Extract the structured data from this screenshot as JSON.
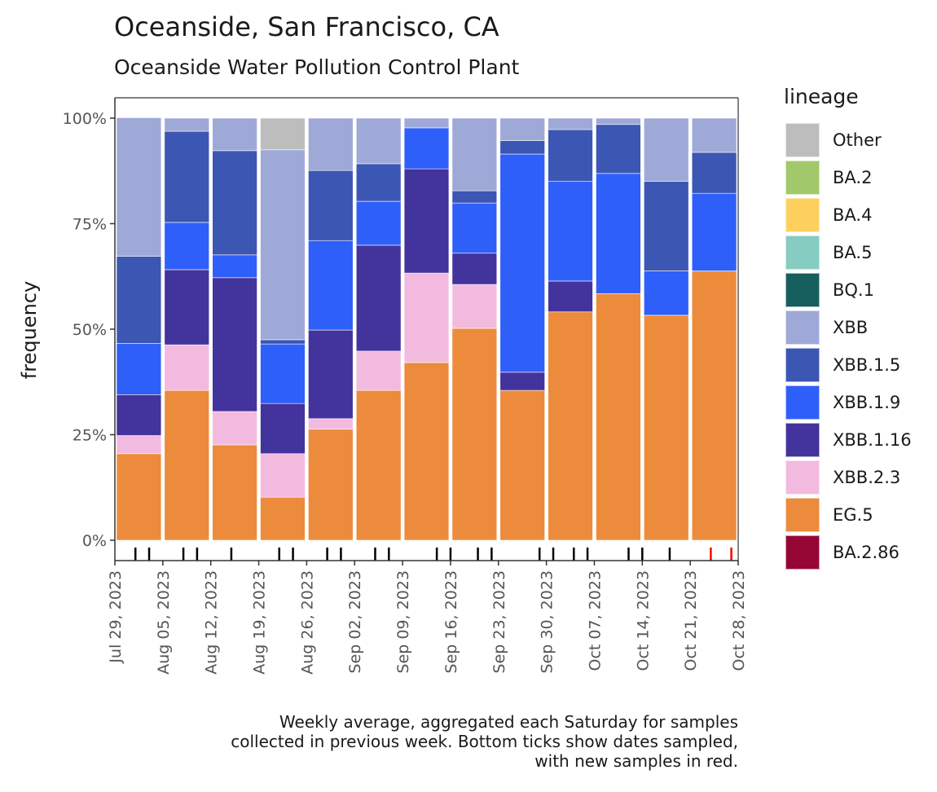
{
  "chart_data": {
    "type": "bar",
    "stacked": true,
    "title": "Oceanside, San Francisco, CA",
    "subtitle": "Oceanside Water Pollution Control Plant",
    "xlabel": "",
    "ylabel": "frequency",
    "ylim": [
      0,
      1
    ],
    "y_ticks": [
      {
        "value": 0,
        "label": "0%"
      },
      {
        "value": 0.25,
        "label": "25%"
      },
      {
        "value": 0.5,
        "label": "50%"
      },
      {
        "value": 0.75,
        "label": "75%"
      },
      {
        "value": 1,
        "label": "100%"
      }
    ],
    "x_range_days": [
      0,
      91
    ],
    "x_ticks": [
      {
        "day": 0,
        "label": "Jul 29, 2023"
      },
      {
        "day": 7,
        "label": "Aug 05, 2023"
      },
      {
        "day": 14,
        "label": "Aug 12, 2023"
      },
      {
        "day": 21,
        "label": "Aug 19, 2023"
      },
      {
        "day": 28,
        "label": "Aug 26, 2023"
      },
      {
        "day": 35,
        "label": "Sep 02, 2023"
      },
      {
        "day": 42,
        "label": "Sep 09, 2023"
      },
      {
        "day": 49,
        "label": "Sep 16, 2023"
      },
      {
        "day": 56,
        "label": "Sep 23, 2023"
      },
      {
        "day": 63,
        "label": "Sep 30, 2023"
      },
      {
        "day": 70,
        "label": "Oct 07, 2023"
      },
      {
        "day": 77,
        "label": "Oct 14, 2023"
      },
      {
        "day": 84,
        "label": "Oct 21, 2023"
      },
      {
        "day": 91,
        "label": "Oct 28, 2023"
      }
    ],
    "categories": [
      "Aug 05, 2023",
      "Aug 12, 2023",
      "Aug 19, 2023",
      "Aug 26, 2023",
      "Sep 02, 2023",
      "Sep 09, 2023",
      "Sep 16, 2023",
      "Sep 23, 2023",
      "Sep 30, 2023",
      "Oct 07, 2023",
      "Oct 14, 2023",
      "Oct 21, 2023",
      "Oct 28, 2023"
    ],
    "stack_order": [
      "EG.5",
      "XBB.2.3",
      "XBB.1.16",
      "XBB.1.9",
      "XBB.1.5",
      "XBB",
      "Other"
    ],
    "series": [
      {
        "name": "Other",
        "color": "#bdbdbd",
        "values": [
          0,
          0,
          0,
          7.5,
          0,
          0,
          0,
          0,
          0,
          0,
          0,
          0,
          0
        ]
      },
      {
        "name": "BA.2",
        "color": "#a1c96b",
        "values": [
          0,
          0,
          0,
          0,
          0,
          0,
          0,
          0,
          0,
          0,
          0,
          0,
          0
        ]
      },
      {
        "name": "BA.4",
        "color": "#fdd05e",
        "values": [
          0,
          0,
          0,
          0,
          0,
          0,
          0,
          0,
          0,
          0,
          0,
          0,
          0
        ]
      },
      {
        "name": "BA.5",
        "color": "#86ccc1",
        "values": [
          0,
          0,
          0,
          0,
          0,
          0,
          0,
          0,
          0,
          0,
          0,
          0,
          0
        ]
      },
      {
        "name": "BQ.1",
        "color": "#175e5e",
        "values": [
          0,
          0,
          0,
          0,
          0,
          0,
          0,
          0,
          0,
          0,
          0,
          0,
          0
        ]
      },
      {
        "name": "XBB",
        "color": "#9fa9d8",
        "values": [
          32.8,
          3.1,
          7.7,
          45.0,
          12.4,
          10.8,
          2.3,
          17.2,
          5.3,
          2.7,
          1.5,
          15.0,
          8.1
        ]
      },
      {
        "name": "XBB.1.5",
        "color": "#3c56b3",
        "values": [
          20.7,
          21.6,
          24.7,
          1.0,
          16.6,
          8.9,
          0,
          2.9,
          3.2,
          12.3,
          11.6,
          21.2,
          9.7
        ]
      },
      {
        "name": "XBB.1.9",
        "color": "#2f5ff9",
        "values": [
          12.1,
          11.2,
          5.4,
          14.1,
          21.2,
          10.4,
          9.7,
          11.9,
          51.7,
          23.6,
          28.5,
          10.5,
          18.4
        ]
      },
      {
        "name": "XBB.1.16",
        "color": "#43339c",
        "values": [
          9.7,
          17.8,
          31.7,
          11.9,
          21.0,
          25.1,
          24.7,
          7.4,
          4.3,
          7.3,
          0,
          0,
          0
        ]
      },
      {
        "name": "XBB.2.3",
        "color": "#f2bade",
        "values": [
          4.3,
          10.8,
          7.9,
          10.3,
          2.5,
          9.3,
          21.2,
          10.4,
          0,
          0,
          0,
          0,
          0
        ]
      },
      {
        "name": "EG.5",
        "color": "#ec8b3c",
        "values": [
          20.5,
          35.5,
          22.6,
          10.2,
          26.3,
          35.5,
          42.1,
          50.2,
          35.5,
          54.1,
          58.4,
          53.3,
          63.8
        ]
      },
      {
        "name": "BA.2.86",
        "color": "#960635",
        "values": [
          0,
          0,
          0,
          0,
          0,
          0,
          0,
          0,
          0,
          0,
          0,
          0,
          0
        ]
      }
    ],
    "sample_dates": [
      {
        "date": "Aug 01, 2023",
        "day": 3,
        "new": false
      },
      {
        "date": "Aug 03, 2023",
        "day": 5,
        "new": false
      },
      {
        "date": "Aug 08, 2023",
        "day": 10,
        "new": false
      },
      {
        "date": "Aug 10, 2023",
        "day": 12,
        "new": false
      },
      {
        "date": "Aug 15, 2023",
        "day": 17,
        "new": false
      },
      {
        "date": "Aug 22, 2023",
        "day": 24,
        "new": false
      },
      {
        "date": "Aug 24, 2023",
        "day": 26,
        "new": false
      },
      {
        "date": "Aug 29, 2023",
        "day": 31,
        "new": false
      },
      {
        "date": "Aug 31, 2023",
        "day": 33,
        "new": false
      },
      {
        "date": "Sep 05, 2023",
        "day": 38,
        "new": false
      },
      {
        "date": "Sep 07, 2023",
        "day": 40,
        "new": false
      },
      {
        "date": "Sep 14, 2023",
        "day": 47,
        "new": false
      },
      {
        "date": "Sep 16, 2023",
        "day": 49,
        "new": false
      },
      {
        "date": "Sep 20, 2023",
        "day": 53,
        "new": false
      },
      {
        "date": "Sep 22, 2023",
        "day": 55,
        "new": false
      },
      {
        "date": "Sep 29, 2023",
        "day": 62,
        "new": false
      },
      {
        "date": "Oct 01, 2023",
        "day": 64,
        "new": false
      },
      {
        "date": "Oct 04, 2023",
        "day": 67,
        "new": false
      },
      {
        "date": "Oct 06, 2023",
        "day": 69,
        "new": false
      },
      {
        "date": "Oct 12, 2023",
        "day": 75,
        "new": false
      },
      {
        "date": "Oct 14, 2023",
        "day": 77,
        "new": false
      },
      {
        "date": "Oct 18, 2023",
        "day": 81,
        "new": false
      },
      {
        "date": "Oct 24, 2023",
        "day": 87,
        "new": true
      },
      {
        "date": "Oct 27, 2023",
        "day": 90,
        "new": true
      }
    ],
    "sample_tick_colors": {
      "old": "#000000",
      "new": "#ff0000"
    },
    "legend": {
      "title": "lineage",
      "position": "right"
    },
    "grid": false,
    "caption": "Weekly average, aggregated each Saturday for samples\ncollected in previous week. Bottom ticks show dates sampled,\nwith new samples in red."
  }
}
